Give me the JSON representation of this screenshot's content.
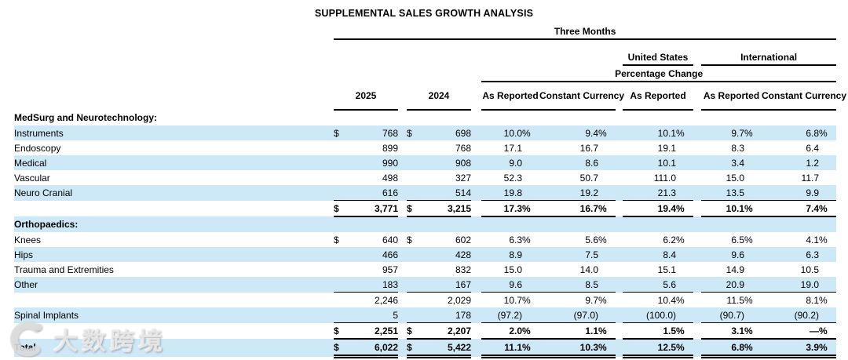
{
  "title": "SUPPLEMENTAL SALES GROWTH ANALYSIS",
  "colors": {
    "stripe": "#cde8f7",
    "text": "#000000"
  },
  "watermark": {
    "text": "大数跨境",
    "logo": "crescent-logo"
  },
  "table": {
    "header": {
      "period": "Three Months",
      "united_states": "United States",
      "international": "International",
      "percentage_change": "Percentage Change",
      "col_2025": "2025",
      "col_2024": "2024",
      "as_reported": "As Reported",
      "constant_currency": "Constant Currency"
    },
    "rows": [
      {
        "label": "MedSurg and Neurotechnology:",
        "style": "section",
        "stripe": false,
        "d1": "",
        "v1": "",
        "d2": "",
        "v2": "",
        "p": [
          [
            "",
            ""
          ],
          [
            "",
            ""
          ],
          [
            "",
            ""
          ],
          [
            "",
            ""
          ],
          [
            "",
            ""
          ]
        ],
        "border": ""
      },
      {
        "label": "Instruments",
        "style": "item",
        "stripe": true,
        "d1": "$",
        "v1": "768",
        "d2": "$",
        "v2": "698",
        "p": [
          [
            "10.0",
            "%"
          ],
          [
            "9.4",
            "%"
          ],
          [
            "10.1",
            "%"
          ],
          [
            "9.7",
            "%"
          ],
          [
            "6.8",
            "%"
          ]
        ],
        "border": ""
      },
      {
        "label": "Endoscopy",
        "style": "item",
        "stripe": false,
        "d1": "",
        "v1": "899",
        "d2": "",
        "v2": "768",
        "p": [
          [
            "17.1",
            ""
          ],
          [
            "16.7",
            ""
          ],
          [
            "19.1",
            ""
          ],
          [
            "8.3",
            ""
          ],
          [
            "6.4",
            ""
          ]
        ],
        "border": ""
      },
      {
        "label": "Medical",
        "style": "item",
        "stripe": true,
        "d1": "",
        "v1": "990",
        "d2": "",
        "v2": "908",
        "p": [
          [
            "9.0",
            ""
          ],
          [
            "8.6",
            ""
          ],
          [
            "10.1",
            ""
          ],
          [
            "3.4",
            ""
          ],
          [
            "1.2",
            ""
          ]
        ],
        "border": ""
      },
      {
        "label": "Vascular",
        "style": "item",
        "stripe": false,
        "d1": "",
        "v1": "498",
        "d2": "",
        "v2": "327",
        "p": [
          [
            "52.3",
            ""
          ],
          [
            "50.7",
            ""
          ],
          [
            "111.0",
            ""
          ],
          [
            "15.0",
            ""
          ],
          [
            "11.7",
            ""
          ]
        ],
        "border": ""
      },
      {
        "label": "Neuro Cranial",
        "style": "item",
        "stripe": true,
        "d1": "",
        "v1": "616",
        "d2": "",
        "v2": "514",
        "p": [
          [
            "19.8",
            ""
          ],
          [
            "19.2",
            ""
          ],
          [
            "21.3",
            ""
          ],
          [
            "13.5",
            ""
          ],
          [
            "9.9",
            ""
          ]
        ],
        "border": "single"
      },
      {
        "label": "",
        "style": "subtotal",
        "stripe": false,
        "d1": "$",
        "v1": "3,771",
        "d2": "$",
        "v2": "3,215",
        "p": [
          [
            "17.3",
            "%"
          ],
          [
            "16.7",
            "%"
          ],
          [
            "19.4",
            "%"
          ],
          [
            "10.1",
            "%"
          ],
          [
            "7.4",
            "%"
          ]
        ],
        "border": "thick"
      },
      {
        "label": "Orthopaedics:",
        "style": "section",
        "stripe": true,
        "d1": "",
        "v1": "",
        "d2": "",
        "v2": "",
        "p": [
          [
            "",
            ""
          ],
          [
            "",
            ""
          ],
          [
            "",
            ""
          ],
          [
            "",
            ""
          ],
          [
            "",
            ""
          ]
        ],
        "border": ""
      },
      {
        "label": "Knees",
        "style": "item",
        "stripe": false,
        "d1": "$",
        "v1": "640",
        "d2": "$",
        "v2": "602",
        "p": [
          [
            "6.3",
            "%"
          ],
          [
            "5.6",
            "%"
          ],
          [
            "6.2",
            "%"
          ],
          [
            "6.5",
            "%"
          ],
          [
            "4.1",
            "%"
          ]
        ],
        "border": ""
      },
      {
        "label": "Hips",
        "style": "item",
        "stripe": true,
        "d1": "",
        "v1": "466",
        "d2": "",
        "v2": "428",
        "p": [
          [
            "8.9",
            ""
          ],
          [
            "7.5",
            ""
          ],
          [
            "8.4",
            ""
          ],
          [
            "9.6",
            ""
          ],
          [
            "6.3",
            ""
          ]
        ],
        "border": ""
      },
      {
        "label": "Trauma and Extremities",
        "style": "item",
        "stripe": false,
        "d1": "",
        "v1": "957",
        "d2": "",
        "v2": "832",
        "p": [
          [
            "15.0",
            ""
          ],
          [
            "14.0",
            ""
          ],
          [
            "15.1",
            ""
          ],
          [
            "14.9",
            ""
          ],
          [
            "10.5",
            ""
          ]
        ],
        "border": ""
      },
      {
        "label": "Other",
        "style": "item",
        "stripe": true,
        "d1": "",
        "v1": "183",
        "d2": "",
        "v2": "167",
        "p": [
          [
            "9.6",
            ""
          ],
          [
            "8.5",
            ""
          ],
          [
            "5.6",
            ""
          ],
          [
            "20.9",
            ""
          ],
          [
            "19.0",
            ""
          ]
        ],
        "border": "single"
      },
      {
        "label": "",
        "style": "plain",
        "stripe": false,
        "d1": "",
        "v1": "2,246",
        "d2": "",
        "v2": "2,029",
        "p": [
          [
            "10.7",
            "%"
          ],
          [
            "9.7",
            "%"
          ],
          [
            "10.4",
            "%"
          ],
          [
            "11.5",
            "%"
          ],
          [
            "8.1",
            "%"
          ]
        ],
        "border": ""
      },
      {
        "label": "Spinal Implants",
        "style": "item",
        "stripe": true,
        "d1": "",
        "v1": "5",
        "d2": "",
        "v2": "178",
        "p": [
          [
            "(97.2)",
            ""
          ],
          [
            "(97.0)",
            ""
          ],
          [
            "(100.0)",
            ""
          ],
          [
            "(90.7)",
            ""
          ],
          [
            "(90.2)",
            ""
          ]
        ],
        "border": "single"
      },
      {
        "label": "",
        "style": "subtotal",
        "stripe": false,
        "d1": "$",
        "v1": "2,251",
        "d2": "$",
        "v2": "2,207",
        "p": [
          [
            "2.0",
            "%"
          ],
          [
            "1.1",
            "%"
          ],
          [
            "1.5",
            "%"
          ],
          [
            "3.1",
            "%"
          ],
          [
            "—",
            "%"
          ]
        ],
        "border": "thick"
      },
      {
        "label": "Total",
        "style": "total",
        "stripe": true,
        "d1": "$",
        "v1": "6,022",
        "d2": "$",
        "v2": "5,422",
        "p": [
          [
            "11.1",
            "%"
          ],
          [
            "10.3",
            "%"
          ],
          [
            "12.5",
            "%"
          ],
          [
            "6.8",
            "%"
          ],
          [
            "3.9",
            "%"
          ]
        ],
        "border": "double"
      }
    ]
  }
}
